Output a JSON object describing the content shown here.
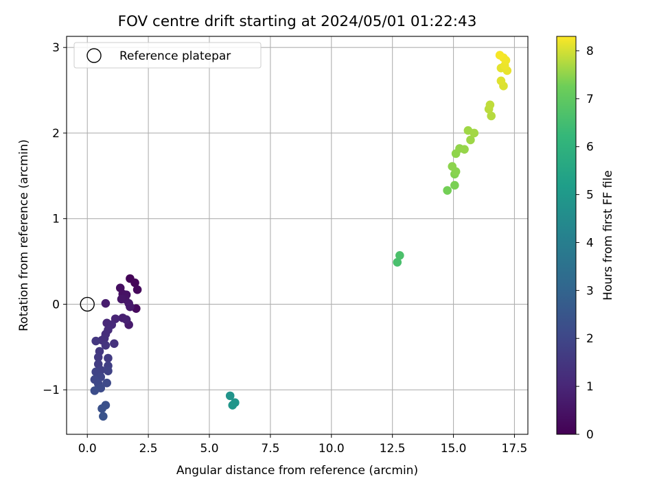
{
  "chart_data": {
    "type": "scatter",
    "title": "FOV centre drift starting at 2024/05/01 01:22:43",
    "xlabel": "Angular distance from reference (arcmin)",
    "ylabel": "Rotation from reference (arcmin)",
    "xlim": [
      -0.85,
      18.05
    ],
    "ylim": [
      -1.52,
      3.13
    ],
    "xticks": [
      0.0,
      2.5,
      5.0,
      7.5,
      10.0,
      12.5,
      15.0,
      17.5
    ],
    "xtick_labels": [
      "0.0",
      "2.5",
      "5.0",
      "7.5",
      "10.0",
      "12.5",
      "15.0",
      "17.5"
    ],
    "yticks": [
      -1,
      0,
      1,
      2,
      3
    ],
    "ytick_labels": [
      "−1",
      "0",
      "1",
      "2",
      "3"
    ],
    "grid": true,
    "legend": {
      "position": "top-left",
      "entries": [
        "Reference platepar"
      ]
    },
    "reference_point": {
      "x": 0,
      "y": 0,
      "label": "Reference platepar"
    },
    "colorbar": {
      "label": "Hours from first FF file",
      "range": [
        0,
        8.3
      ],
      "ticks": [
        0,
        1,
        2,
        3,
        4,
        5,
        6,
        7,
        8
      ],
      "tick_labels": [
        "0",
        "1",
        "2",
        "3",
        "4",
        "5",
        "6",
        "7",
        "8"
      ],
      "colormap": "viridis"
    },
    "points": [
      {
        "x": 1.75,
        "y": 0.3,
        "h": 0.1
      },
      {
        "x": 1.95,
        "y": 0.25,
        "h": 0.15
      },
      {
        "x": 2.05,
        "y": 0.17,
        "h": 0.2
      },
      {
        "x": 2.0,
        "y": -0.05,
        "h": 0.25
      },
      {
        "x": 1.35,
        "y": 0.19,
        "h": 0.35
      },
      {
        "x": 1.45,
        "y": 0.12,
        "h": 0.4
      },
      {
        "x": 1.6,
        "y": 0.11,
        "h": 0.45
      },
      {
        "x": 1.55,
        "y": 0.06,
        "h": 0.5
      },
      {
        "x": 1.4,
        "y": 0.06,
        "h": 0.55
      },
      {
        "x": 1.7,
        "y": 0.01,
        "h": 0.6
      },
      {
        "x": 1.75,
        "y": -0.03,
        "h": 0.65
      },
      {
        "x": 1.7,
        "y": -0.24,
        "h": 0.7
      },
      {
        "x": 0.75,
        "y": 0.01,
        "h": 0.75
      },
      {
        "x": 1.45,
        "y": -0.16,
        "h": 0.8
      },
      {
        "x": 1.6,
        "y": -0.18,
        "h": 0.85
      },
      {
        "x": 1.15,
        "y": -0.17,
        "h": 0.95
      },
      {
        "x": 0.8,
        "y": -0.22,
        "h": 1.05
      },
      {
        "x": 1.0,
        "y": -0.24,
        "h": 1.1
      },
      {
        "x": 0.85,
        "y": -0.3,
        "h": 1.15
      },
      {
        "x": 0.75,
        "y": -0.35,
        "h": 1.2
      },
      {
        "x": 0.7,
        "y": -0.4,
        "h": 1.25
      },
      {
        "x": 0.6,
        "y": -0.42,
        "h": 1.3
      },
      {
        "x": 1.1,
        "y": -0.46,
        "h": 1.35
      },
      {
        "x": 0.75,
        "y": -0.48,
        "h": 1.4
      },
      {
        "x": 0.35,
        "y": -0.43,
        "h": 1.5
      },
      {
        "x": 0.5,
        "y": -0.55,
        "h": 1.55
      },
      {
        "x": 0.45,
        "y": -0.62,
        "h": 1.6
      },
      {
        "x": 0.85,
        "y": -0.63,
        "h": 1.65
      },
      {
        "x": 0.45,
        "y": -0.7,
        "h": 1.7
      },
      {
        "x": 0.85,
        "y": -0.72,
        "h": 1.75
      },
      {
        "x": 0.55,
        "y": -0.77,
        "h": 1.8
      },
      {
        "x": 0.85,
        "y": -0.78,
        "h": 1.85
      },
      {
        "x": 0.35,
        "y": -0.79,
        "h": 1.9
      },
      {
        "x": 0.55,
        "y": -0.85,
        "h": 1.95
      },
      {
        "x": 0.3,
        "y": -0.88,
        "h": 2.0
      },
      {
        "x": 0.45,
        "y": -0.93,
        "h": 2.05
      },
      {
        "x": 0.8,
        "y": -0.92,
        "h": 2.1
      },
      {
        "x": 0.55,
        "y": -0.98,
        "h": 2.15
      },
      {
        "x": 0.3,
        "y": -1.01,
        "h": 2.2
      },
      {
        "x": 0.75,
        "y": -1.18,
        "h": 2.3
      },
      {
        "x": 0.6,
        "y": -1.22,
        "h": 2.35
      },
      {
        "x": 0.65,
        "y": -1.31,
        "h": 2.4
      },
      {
        "x": 5.85,
        "y": -1.07,
        "h": 4.8
      },
      {
        "x": 6.05,
        "y": -1.15,
        "h": 4.85
      },
      {
        "x": 5.95,
        "y": -1.18,
        "h": 4.9
      },
      {
        "x": 12.7,
        "y": 0.49,
        "h": 6.6
      },
      {
        "x": 12.8,
        "y": 0.57,
        "h": 6.65
      },
      {
        "x": 14.75,
        "y": 1.33,
        "h": 7.3
      },
      {
        "x": 15.05,
        "y": 1.39,
        "h": 7.35
      },
      {
        "x": 15.05,
        "y": 1.52,
        "h": 7.4
      },
      {
        "x": 15.1,
        "y": 1.55,
        "h": 7.45
      },
      {
        "x": 14.95,
        "y": 1.61,
        "h": 7.48
      },
      {
        "x": 15.1,
        "y": 1.76,
        "h": 7.5
      },
      {
        "x": 15.25,
        "y": 1.82,
        "h": 7.52
      },
      {
        "x": 15.45,
        "y": 1.81,
        "h": 7.55
      },
      {
        "x": 15.7,
        "y": 1.92,
        "h": 7.6
      },
      {
        "x": 15.6,
        "y": 2.03,
        "h": 7.62
      },
      {
        "x": 15.85,
        "y": 2.0,
        "h": 7.65
      },
      {
        "x": 16.55,
        "y": 2.2,
        "h": 7.78
      },
      {
        "x": 16.45,
        "y": 2.28,
        "h": 7.82
      },
      {
        "x": 16.5,
        "y": 2.33,
        "h": 7.85
      },
      {
        "x": 17.05,
        "y": 2.55,
        "h": 8.05
      },
      {
        "x": 16.95,
        "y": 2.61,
        "h": 8.08
      },
      {
        "x": 16.95,
        "y": 2.76,
        "h": 8.12
      },
      {
        "x": 17.2,
        "y": 2.73,
        "h": 8.15
      },
      {
        "x": 17.1,
        "y": 2.79,
        "h": 8.18
      },
      {
        "x": 17.15,
        "y": 2.85,
        "h": 8.2
      },
      {
        "x": 17.05,
        "y": 2.88,
        "h": 8.22
      },
      {
        "x": 16.9,
        "y": 2.91,
        "h": 8.25
      }
    ]
  }
}
